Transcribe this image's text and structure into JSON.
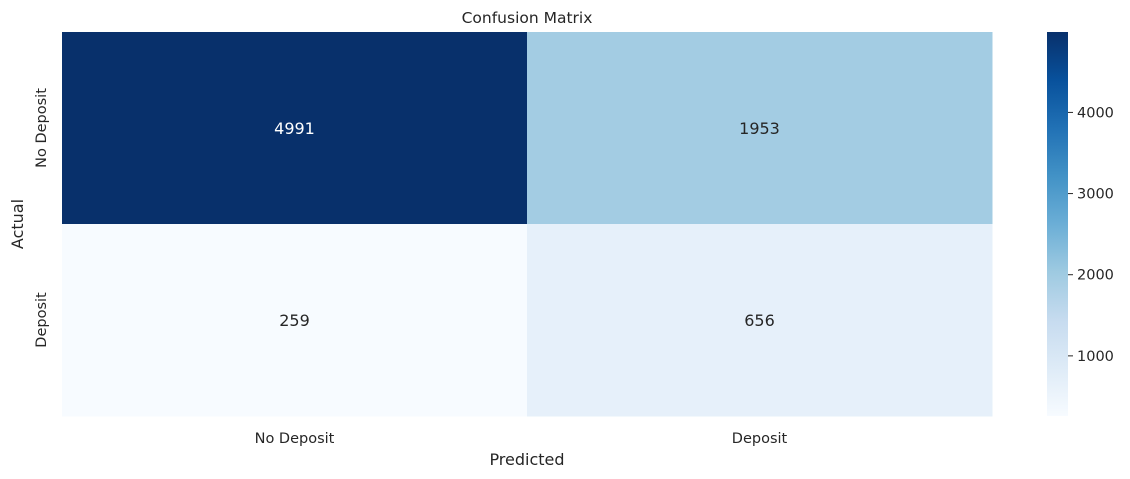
{
  "chart_data": {
    "type": "heatmap",
    "title": "Confusion Matrix",
    "xlabel": "Predicted",
    "ylabel": "Actual",
    "x_categories": [
      "No Deposit",
      "Deposit"
    ],
    "y_categories": [
      "No Deposit",
      "Deposit"
    ],
    "values": [
      [
        4991,
        1953
      ],
      [
        259,
        656
      ]
    ],
    "colormap": "Blues",
    "colorbar": {
      "min": 259,
      "max": 4991,
      "ticks": [
        1000,
        2000,
        3000,
        4000
      ]
    },
    "annotation_colors": {
      "light": "#ffffff",
      "dark": "#262626"
    },
    "palette": [
      "#f7fbff",
      "#deebf7",
      "#c6dbef",
      "#9ecae1",
      "#6baed6",
      "#4292c6",
      "#2171b5",
      "#08519c",
      "#08306b"
    ]
  }
}
